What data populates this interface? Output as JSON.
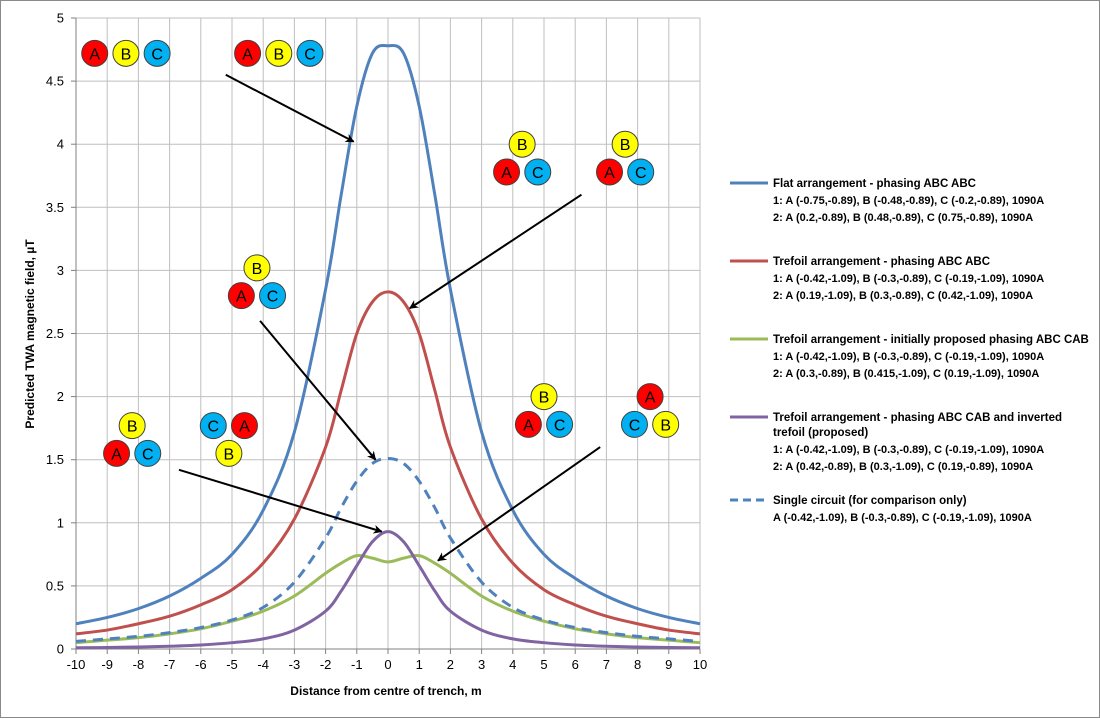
{
  "chart_data": {
    "type": "line",
    "xlabel": "Distance from centre of trench, m",
    "ylabel": "Predicted TWA magnetic field, µT",
    "xlim": [
      -10,
      10
    ],
    "ylim": [
      0,
      5
    ],
    "x_ticks": [
      "-10",
      "-9",
      "-8",
      "-7",
      "-6",
      "-5",
      "-4",
      "-3",
      "-2",
      "-1",
      "0",
      "1",
      "2",
      "3",
      "4",
      "5",
      "6",
      "7",
      "8",
      "9",
      "10"
    ],
    "y_ticks": [
      "0",
      "0.5",
      "1",
      "1.5",
      "2",
      "2.5",
      "3",
      "3.5",
      "4",
      "4.5",
      "5"
    ],
    "grid": true,
    "legend_position": "right",
    "x": [
      -10,
      -9,
      -8,
      -7,
      -6,
      -5,
      -4,
      -3,
      -2,
      -1.5,
      -1,
      -0.5,
      0,
      0.5,
      1,
      1.5,
      2,
      3,
      4,
      5,
      6,
      7,
      8,
      9,
      10
    ],
    "series": [
      {
        "name": "Flat arrangement - phasing ABC ABC",
        "lines": [
          "1: A (-0.75,-0.89), B (-0.48,-0.89), C (-0.2,-0.89), 1090A",
          "2: A (0.2,-0.89), B (0.48,-0.89), C (0.75,-0.89), 1090A"
        ],
        "color": "#4f81bd",
        "dash": "solid",
        "values": [
          0.2,
          0.25,
          0.32,
          0.42,
          0.56,
          0.75,
          1.1,
          1.72,
          2.85,
          3.6,
          4.3,
          4.72,
          4.78,
          4.72,
          4.3,
          3.6,
          2.85,
          1.72,
          1.1,
          0.75,
          0.56,
          0.42,
          0.32,
          0.25,
          0.2
        ]
      },
      {
        "name": "Trefoil arrangement - phasing ABC ABC",
        "lines": [
          "1: A (-0.42,-1.09), B (-0.3,-0.89), C (-0.19,-1.09), 1090A",
          "2: A (0.19,-1.09), B (0.3,-0.89), C (0.42,-1.09), 1090A"
        ],
        "color": "#c0504d",
        "dash": "solid",
        "values": [
          0.12,
          0.15,
          0.2,
          0.26,
          0.35,
          0.47,
          0.68,
          1.03,
          1.6,
          2.05,
          2.5,
          2.75,
          2.83,
          2.75,
          2.5,
          2.05,
          1.6,
          1.03,
          0.68,
          0.47,
          0.35,
          0.26,
          0.2,
          0.15,
          0.12
        ]
      },
      {
        "name": "Trefoil arrangement - initially proposed phasing ABC CAB",
        "lines": [
          "1: A (-0.42,-1.09), B (-0.3,-0.89), C (-0.19,-1.09), 1090A",
          "2: A (0.3,-0.89), B (0.415,-1.09), C (0.19,-1.09), 1090A"
        ],
        "color": "#9bbb59",
        "dash": "solid",
        "values": [
          0.05,
          0.07,
          0.09,
          0.12,
          0.16,
          0.22,
          0.3,
          0.42,
          0.6,
          0.68,
          0.74,
          0.72,
          0.69,
          0.72,
          0.74,
          0.68,
          0.6,
          0.42,
          0.3,
          0.22,
          0.16,
          0.12,
          0.09,
          0.07,
          0.05
        ]
      },
      {
        "name": "Trefoil arrangement - phasing ABC CAB and inverted trefoil (proposed)",
        "lines": [
          "1: A (-0.42,-1.09), B (-0.3,-0.89), C (-0.19,-1.09), 1090A",
          "2: A (0.42,-0.89), B (0.3,-1.09), C (0.19,-0.89), 1090A"
        ],
        "title_lines": [
          "Trefoil arrangement - phasing ABC CAB and inverted",
          "trefoil (proposed)"
        ],
        "color": "#8064a2",
        "dash": "solid",
        "values": [
          0.01,
          0.012,
          0.016,
          0.022,
          0.032,
          0.05,
          0.08,
          0.15,
          0.3,
          0.46,
          0.66,
          0.85,
          0.93,
          0.85,
          0.66,
          0.46,
          0.3,
          0.15,
          0.08,
          0.05,
          0.032,
          0.022,
          0.016,
          0.012,
          0.01
        ]
      },
      {
        "name": "Single circuit (for comparison only)",
        "lines": [
          "A (-0.42,-1.09), B (-0.3,-0.89), C (-0.19,-1.09), 1090A"
        ],
        "color": "#4f81bd",
        "dash": "dashed",
        "values": [
          0.06,
          0.08,
          0.1,
          0.13,
          0.17,
          0.23,
          0.33,
          0.53,
          0.88,
          1.12,
          1.33,
          1.47,
          1.51,
          1.47,
          1.33,
          1.12,
          0.88,
          0.53,
          0.33,
          0.23,
          0.17,
          0.13,
          0.1,
          0.08,
          0.06
        ]
      }
    ],
    "annotations": [
      {
        "label": "flat-ABC-ABC",
        "circles": [
          [
            "A",
            "A",
            -9.4,
            4.72
          ],
          [
            "B",
            "B",
            -8.4,
            4.72
          ],
          [
            "C",
            "C",
            -7.4,
            4.72
          ],
          [
            "A",
            "A",
            -4.5,
            4.72
          ],
          [
            "B",
            "B",
            -3.5,
            4.72
          ],
          [
            "C",
            "C",
            -2.5,
            4.72
          ]
        ],
        "arrow": [
          [
            -5.2,
            4.55
          ],
          [
            -1.1,
            4.02
          ]
        ]
      },
      {
        "label": "trefoil-ABC-ABC",
        "circles": [
          [
            "B",
            "B",
            4.3,
            4.0
          ],
          [
            "A",
            "A",
            3.8,
            3.78
          ],
          [
            "C",
            "C",
            4.8,
            3.78
          ],
          [
            "B",
            "B",
            7.6,
            4.0
          ],
          [
            "A",
            "A",
            7.1,
            3.78
          ],
          [
            "C",
            "C",
            8.1,
            3.78
          ]
        ],
        "arrow": [
          [
            6.2,
            3.6
          ],
          [
            0.7,
            2.7
          ]
        ]
      },
      {
        "label": "single-circuit",
        "circles": [
          [
            "B",
            "B",
            -4.2,
            3.02
          ],
          [
            "A",
            "A",
            -4.7,
            2.8
          ],
          [
            "C",
            "C",
            -3.7,
            2.8
          ]
        ],
        "arrow": [
          [
            -4.1,
            2.6
          ],
          [
            -0.4,
            1.5
          ]
        ]
      },
      {
        "label": "trefoil-ABC-CAB-inverted",
        "circles": [
          [
            "B",
            "B",
            -8.2,
            1.77
          ],
          [
            "A",
            "A",
            -8.7,
            1.55
          ],
          [
            "C",
            "C",
            -7.7,
            1.55
          ],
          [
            "C",
            "C",
            -5.6,
            1.77
          ],
          [
            "A",
            "A",
            -4.6,
            1.77
          ],
          [
            "B",
            "B",
            -5.1,
            1.55
          ]
        ],
        "arrow": [
          [
            -6.7,
            1.42
          ],
          [
            -0.2,
            0.93
          ]
        ]
      },
      {
        "label": "trefoil-ABC-CAB-initial",
        "circles": [
          [
            "B",
            "B",
            5.0,
            2.0
          ],
          [
            "A",
            "A",
            4.5,
            1.78
          ],
          [
            "C",
            "C",
            5.5,
            1.78
          ],
          [
            "A",
            "A",
            8.4,
            2.0
          ],
          [
            "C",
            "C",
            7.9,
            1.78
          ],
          [
            "B",
            "B",
            8.9,
            1.78
          ]
        ],
        "arrow": [
          [
            6.8,
            1.6
          ],
          [
            1.6,
            0.7
          ]
        ]
      }
    ]
  },
  "phase_colors": {
    "A": "#ff0000",
    "B": "#ffff00",
    "C": "#00b0f0"
  }
}
